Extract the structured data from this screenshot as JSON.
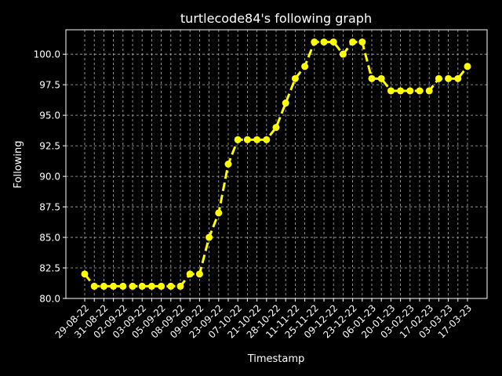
{
  "chart_data": {
    "type": "line",
    "title": "turtlecode84's following graph",
    "xlabel": "Timestamp",
    "ylabel": "Following",
    "ylim": [
      80.0,
      102.0
    ],
    "yticks": [
      "80.0",
      "82.5",
      "85.0",
      "87.5",
      "90.0",
      "92.5",
      "95.0",
      "97.5",
      "100.0"
    ],
    "xtick_labels": [
      "29-08-22",
      "31-08-22",
      "02-09-22",
      "03-09-22",
      "05-09-22",
      "08-09-22",
      "09-09-22",
      "23-09-22",
      "07-10-22",
      "21-10-22",
      "28-10-22",
      "11-11-22",
      "25-11-22",
      "09-12-22",
      "23-12-22",
      "06-01-23",
      "20-01-23",
      "03-02-23",
      "17-02-23",
      "03-03-23",
      "17-03-23"
    ],
    "grid": true,
    "line_color": "#ffff00",
    "line_style": "dashed",
    "marker": "circle",
    "series": [
      {
        "values": [
          82,
          81,
          81,
          81,
          81,
          81,
          81,
          81,
          81,
          81,
          81,
          82,
          82,
          85,
          87,
          91,
          93,
          93,
          93,
          93,
          94,
          96,
          98,
          99,
          101,
          101,
          101,
          100,
          101,
          101,
          98,
          98,
          97,
          97,
          97,
          97,
          97,
          98,
          98,
          98,
          99
        ]
      }
    ]
  }
}
